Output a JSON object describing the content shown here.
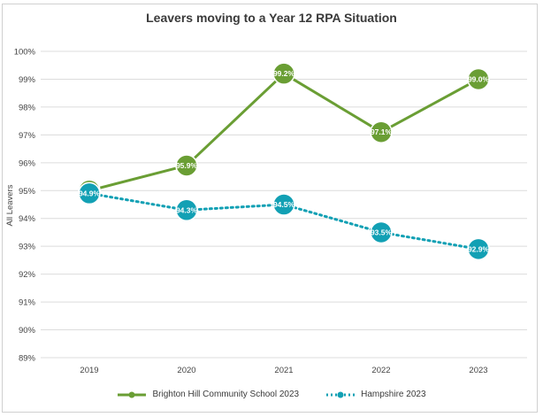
{
  "chart_data": {
    "type": "line",
    "title": "Leavers moving to a Year 12 RPA Situation",
    "xlabel": "",
    "ylabel": "All Leavers",
    "categories": [
      "2019",
      "2020",
      "2021",
      "2022",
      "2023"
    ],
    "ylim": [
      89,
      100
    ],
    "yticks": [
      "100%",
      "99%",
      "98%",
      "97%",
      "96%",
      "95%",
      "94%",
      "93%",
      "92%",
      "91%",
      "90%",
      "89%"
    ],
    "grid": true,
    "legend_position": "bottom",
    "series": [
      {
        "name": "Brighton Hill Community School 2023",
        "values": [
          95.0,
          95.9,
          99.2,
          97.1,
          99.0
        ],
        "labels": [
          "95.0%",
          "95.9%",
          "99.2%",
          "97.1%",
          "99.0%"
        ],
        "color": "#6a9e34",
        "style": "solid"
      },
      {
        "name": "Hampshire 2023",
        "values": [
          94.9,
          94.3,
          94.5,
          93.5,
          92.9
        ],
        "labels": [
          "94.9%",
          "94.3%",
          "94.5%",
          "93.5%",
          "92.9%"
        ],
        "color": "#12a0b4",
        "style": "dotted"
      }
    ]
  }
}
